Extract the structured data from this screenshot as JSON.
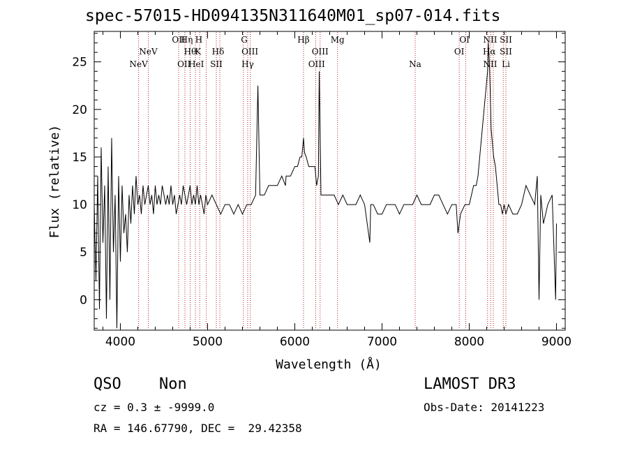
{
  "chart_data": {
    "type": "line",
    "title": "spec-57015-HD094135N311640M01_sp07-014.fits",
    "xlabel": "Wavelength (Å)",
    "ylabel": "Flux (relative)",
    "xlim": [
      3700,
      9100
    ],
    "ylim": [
      -3.2,
      28.2
    ],
    "xticks": [
      4000,
      5000,
      6000,
      7000,
      8000,
      9000
    ],
    "yticks": [
      0,
      5,
      10,
      15,
      20,
      25
    ],
    "grid": false,
    "series": [
      {
        "name": "flux",
        "x": [
          3700,
          3720,
          3740,
          3760,
          3780,
          3800,
          3820,
          3840,
          3860,
          3880,
          3900,
          3920,
          3940,
          3960,
          3980,
          4000,
          4020,
          4040,
          4060,
          4080,
          4100,
          4120,
          4140,
          4160,
          4180,
          4200,
          4220,
          4240,
          4260,
          4280,
          4300,
          4320,
          4340,
          4360,
          4380,
          4400,
          4420,
          4440,
          4460,
          4480,
          4500,
          4520,
          4540,
          4560,
          4580,
          4600,
          4620,
          4640,
          4660,
          4680,
          4700,
          4720,
          4740,
          4760,
          4780,
          4800,
          4820,
          4840,
          4860,
          4880,
          4900,
          4920,
          4940,
          4960,
          4980,
          5000,
          5050,
          5100,
          5150,
          5200,
          5250,
          5300,
          5350,
          5400,
          5450,
          5500,
          5550,
          5577,
          5600,
          5650,
          5700,
          5750,
          5800,
          5850,
          5893,
          5900,
          5950,
          6000,
          6030,
          6060,
          6080,
          6090,
          6100,
          6110,
          6130,
          6160,
          6200,
          6230,
          6250,
          6270,
          6280,
          6300,
          6320,
          6350,
          6400,
          6450,
          6500,
          6550,
          6600,
          6650,
          6700,
          6750,
          6800,
          6860,
          6870,
          6900,
          6950,
          7000,
          7050,
          7100,
          7150,
          7200,
          7250,
          7300,
          7350,
          7400,
          7450,
          7500,
          7550,
          7600,
          7650,
          7700,
          7750,
          7800,
          7850,
          7870,
          7900,
          7950,
          8000,
          8050,
          8080,
          8100,
          8120,
          8140,
          8160,
          8180,
          8200,
          8210,
          8220,
          8230,
          8240,
          8250,
          8260,
          8280,
          8300,
          8320,
          8340,
          8360,
          8380,
          8400,
          8420,
          8450,
          8500,
          8550,
          8600,
          8650,
          8700,
          8750,
          8780,
          8800,
          8820,
          8850,
          8900,
          8950,
          8990,
          9000
        ],
        "values": [
          10,
          2,
          13,
          -1,
          16,
          6,
          12,
          -2,
          14,
          0,
          17,
          5,
          11,
          -3,
          13,
          4,
          12,
          7,
          9,
          5,
          11,
          8,
          12,
          9,
          13,
          10,
          11,
          9,
          12,
          10,
          11,
          12,
          10,
          11,
          9,
          12,
          10,
          11,
          10,
          12,
          11,
          10,
          11,
          10,
          12,
          10,
          11,
          9,
          10,
          11,
          10,
          12,
          11,
          10,
          11,
          12,
          10,
          11,
          10,
          12,
          10,
          11,
          10,
          9,
          11,
          10,
          11,
          10,
          9,
          10,
          10,
          9,
          10,
          9,
          10,
          10,
          11,
          22.5,
          11,
          11,
          12,
          12,
          12,
          13,
          12,
          13,
          13,
          14,
          14,
          15,
          15,
          16,
          17,
          15.5,
          15,
          14,
          14,
          14,
          12,
          13,
          24,
          11,
          11,
          11,
          11,
          11,
          10,
          11,
          10,
          10,
          10,
          11,
          10,
          6,
          10,
          10,
          9,
          9,
          10,
          10,
          10,
          9,
          10,
          10,
          10,
          11,
          10,
          10,
          10,
          11,
          11,
          10,
          9,
          10,
          10,
          7,
          9,
          10,
          10,
          12,
          12,
          13,
          15,
          17,
          19,
          21,
          23,
          24,
          27,
          25,
          22,
          18,
          17,
          15,
          14,
          12,
          10,
          10,
          9,
          10,
          9,
          10,
          9,
          9,
          10,
          12,
          11,
          10,
          13,
          0,
          11,
          8,
          10,
          11,
          0,
          8
        ]
      }
    ],
    "line_markers": [
      {
        "label": "NeV",
        "x": 3426,
        "row": 2,
        "visible": false
      },
      {
        "label": "NeV",
        "x": 4209,
        "row": 2
      },
      {
        "label": "NeV",
        "x": 4320,
        "row": 1
      },
      {
        "label": "OII",
        "x": 4668,
        "row": 0
      },
      {
        "label": "Hη",
        "x": 4760,
        "row": 0
      },
      {
        "label": "Hθ",
        "x": 4800,
        "row": 1
      },
      {
        "label": "H",
        "x": 4900,
        "row": 0
      },
      {
        "label": "K",
        "x": 4890,
        "row": 1
      },
      {
        "label": "HeI",
        "x": 4870,
        "row": 2
      },
      {
        "label": "OII",
        "x": 4730,
        "row": 2
      },
      {
        "label": "Hδ",
        "x": 5120,
        "row": 1
      },
      {
        "label": "SII",
        "x": 5100,
        "row": 2
      },
      {
        "label": "G",
        "x": 5420,
        "row": 0
      },
      {
        "label": "OIII",
        "x": 5485,
        "row": 1
      },
      {
        "label": "Hγ",
        "x": 5460,
        "row": 2
      },
      {
        "label": "Hβ",
        "x": 6100,
        "row": 0
      },
      {
        "label": "OIII",
        "x": 6290,
        "row": 1
      },
      {
        "label": "OIII",
        "x": 6250,
        "row": 2
      },
      {
        "label": "Mg",
        "x": 6490,
        "row": 0
      },
      {
        "label": "Na",
        "x": 7380,
        "row": 2
      },
      {
        "label": "OI",
        "x": 7945,
        "row": 0
      },
      {
        "label": "OI",
        "x": 7885,
        "row": 1
      },
      {
        "label": "NII",
        "x": 8240,
        "row": 0
      },
      {
        "label": "Hα",
        "x": 8230,
        "row": 1
      },
      {
        "label": "NII",
        "x": 8240,
        "row": 2
      },
      {
        "label": "SII",
        "x": 8420,
        "row": 0
      },
      {
        "label": "SII",
        "x": 8420,
        "row": 1
      },
      {
        "label": "Li",
        "x": 8420,
        "row": 2
      }
    ],
    "marker_lines_x": [
      4209,
      4320,
      4668,
      4740,
      4800,
      4860,
      4910,
      4985,
      5100,
      5140,
      5410,
      5460,
      5490,
      6100,
      6240,
      6290,
      6490,
      7380,
      7885,
      7960,
      8210,
      8245,
      8275,
      8390,
      8420
    ]
  },
  "info": {
    "class": "QSO",
    "subclass": "Non",
    "cz": "cz = 0.3 ± -9999.0",
    "radec": "RA = 146.67790, DEC =  29.42358",
    "survey": "LAMOST DR3",
    "obs_date": "Obs-Date: 20141223"
  }
}
